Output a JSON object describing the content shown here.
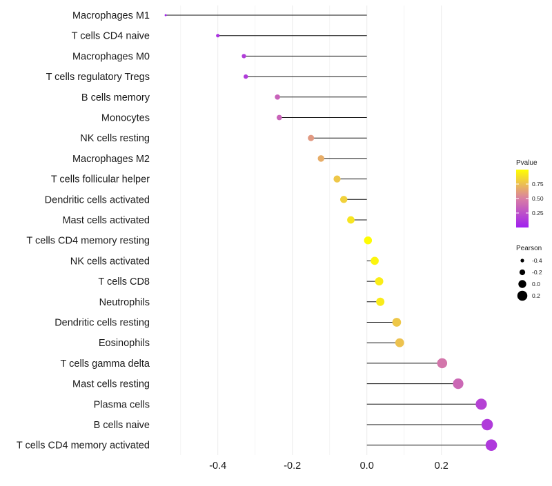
{
  "chart_data": {
    "type": "lollipop",
    "title": "",
    "xlabel": "",
    "ylabel": "",
    "xlim": [
      -0.555,
      0.345
    ],
    "x_ticks": [
      -0.4,
      -0.2,
      0.0,
      0.2
    ],
    "x_tick_labels": [
      "-0.4",
      "-0.2",
      "0.0",
      "0.2"
    ],
    "grid": true,
    "categories": [
      "Macrophages M1",
      "T cells CD4 naive",
      "Macrophages M0",
      "T cells regulatory  Tregs",
      "B cells memory",
      "Monocytes",
      "NK cells resting",
      "Macrophages M2",
      "T cells follicular helper",
      "Dendritic cells activated",
      "Mast cells activated",
      "T cells CD4 memory resting",
      "NK cells activated",
      "T cells CD8",
      "Neutrophils",
      "Dendritic cells resting",
      "Eosinophils",
      "T cells gamma delta",
      "Mast cells resting",
      "Plasma cells",
      "B cells naive",
      "T cells CD4 memory activated"
    ],
    "pearson": [
      -0.54,
      -0.4,
      -0.33,
      -0.325,
      -0.24,
      -0.235,
      -0.15,
      -0.123,
      -0.08,
      -0.062,
      -0.043,
      0.003,
      0.021,
      0.033,
      0.036,
      0.08,
      0.088,
      0.202,
      0.245,
      0.307,
      0.323,
      0.334
    ],
    "pvalue": [
      0.02,
      0.1,
      0.15,
      0.14,
      0.35,
      0.36,
      0.6,
      0.68,
      0.78,
      0.82,
      0.9,
      0.99,
      0.96,
      0.93,
      0.92,
      0.78,
      0.76,
      0.45,
      0.38,
      0.18,
      0.14,
      0.13
    ],
    "legend": {
      "placement": "right",
      "color_title": "Pvalue",
      "color_ticks": [
        0.25,
        0.5,
        0.75
      ],
      "color_tick_labels": [
        "0.25",
        "0.50",
        "0.75"
      ],
      "color_range": [
        0.0,
        1.0
      ],
      "color_low": "#a020f0",
      "color_high": "#ffff00",
      "size_title": "Pearson",
      "size_values": [
        -0.4,
        -0.2,
        0.0,
        0.2
      ],
      "size_labels": [
        "-0.4",
        "-0.2",
        "0.0",
        "0.2"
      ]
    }
  }
}
